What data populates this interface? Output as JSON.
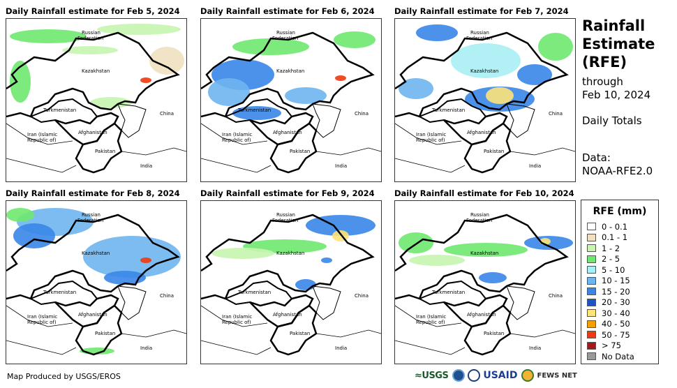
{
  "panels": [
    {
      "title": "Daily Rainfall estimate for Feb 5, 2024"
    },
    {
      "title": "Daily Rainfall estimate for Feb 6, 2024"
    },
    {
      "title": "Daily Rainfall estimate for Feb 7, 2024"
    },
    {
      "title": "Daily Rainfall estimate for Feb 8, 2024"
    },
    {
      "title": "Daily Rainfall estimate for Feb 9, 2024"
    },
    {
      "title": "Daily Rainfall estimate for Feb 10, 2024"
    }
  ],
  "map_labels": {
    "russia_1": "Russian",
    "russia_2": "Federation",
    "kazakhstan": "Kazakhstan",
    "turkmenistan": "Turkmenistan",
    "china": "China",
    "iran_1": "Iran  (Islamic",
    "iran_2": "Republic of)",
    "afghanistan": "Afghanistan",
    "pakistan": "Pakistan",
    "india": "India"
  },
  "side": {
    "title_line1": "Rainfall",
    "title_line2": "Estimate",
    "title_line3": "(RFE)",
    "through": "through",
    "date": "Feb 10, 2024",
    "daily": "Daily Totals",
    "data_label": "Data:",
    "data_source": "NOAA-RFE2.0"
  },
  "legend": {
    "title": "RFE (mm)",
    "items": [
      {
        "label": "0 - 0.1",
        "color": "#ffffff"
      },
      {
        "label": "0.1 - 1",
        "color": "#f0e0c0"
      },
      {
        "label": "1 - 2",
        "color": "#c6f5b0"
      },
      {
        "label": "2 - 5",
        "color": "#6fe86f"
      },
      {
        "label": "5 - 10",
        "color": "#a8f0f5"
      },
      {
        "label": "10 - 15",
        "color": "#6fb5f0"
      },
      {
        "label": "15 - 20",
        "color": "#3a86e8"
      },
      {
        "label": "20 - 30",
        "color": "#1a55c8"
      },
      {
        "label": "30 - 40",
        "color": "#fde37a"
      },
      {
        "label": "40 - 50",
        "color": "#f5a000"
      },
      {
        "label": "50 - 75",
        "color": "#ee3a10"
      },
      {
        "label": "> 75",
        "color": "#a01a1a"
      },
      {
        "label": "No Data",
        "color": "#999999"
      }
    ]
  },
  "footer": {
    "credit": "Map Produced by USGS/EROS"
  },
  "logos": {
    "usgs": "≈USGS",
    "usaid": "USAID",
    "fews": "FEWS NET"
  }
}
